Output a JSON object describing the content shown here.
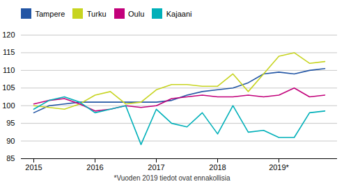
{
  "chart_data": {
    "type": "line",
    "categories": [
      "2015",
      null,
      null,
      null,
      "2016",
      null,
      null,
      null,
      "2017",
      null,
      null,
      null,
      "2018",
      null,
      null,
      null,
      "2019*",
      null,
      null,
      null
    ],
    "series": [
      {
        "name": "Tampere",
        "color": "#2255a4",
        "values": [
          98.0,
          100.0,
          100.5,
          101.0,
          101.0,
          101.0,
          101.0,
          101.0,
          101.0,
          101.5,
          103.0,
          104.0,
          104.5,
          105.0,
          106.5,
          109.0,
          109.5,
          109.0,
          110.0,
          110.5
        ]
      },
      {
        "name": "Turku",
        "color": "#c7d420",
        "values": [
          100.0,
          99.5,
          99.0,
          100.5,
          103.0,
          104.0,
          100.5,
          101.0,
          104.5,
          106.0,
          106.0,
          105.5,
          105.5,
          109.0,
          104.0,
          109.0,
          114.0,
          115.0,
          112.0,
          112.5
        ]
      },
      {
        "name": "Oulu",
        "color": "#c2007a",
        "values": [
          100.5,
          101.5,
          102.0,
          100.5,
          98.5,
          99.0,
          100.0,
          99.5,
          100.0,
          102.0,
          102.5,
          103.0,
          102.5,
          102.5,
          103.0,
          102.5,
          103.0,
          105.0,
          102.5,
          103.0
        ]
      },
      {
        "name": "Kajaani",
        "color": "#00b0b9",
        "values": [
          99.0,
          101.5,
          102.5,
          101.0,
          98.0,
          99.0,
          100.0,
          89.0,
          99.0,
          95.0,
          94.0,
          98.0,
          92.0,
          100.0,
          92.5,
          93.0,
          91.0,
          91.0,
          98.0,
          98.5
        ]
      }
    ],
    "ylim": [
      85,
      120
    ],
    "yticks": [
      85,
      90,
      95,
      100,
      105,
      110,
      115,
      120
    ],
    "grid": true,
    "legend": "upper left",
    "caption": "*Vuoden 2019 tiedot ovat ennakollisia"
  }
}
